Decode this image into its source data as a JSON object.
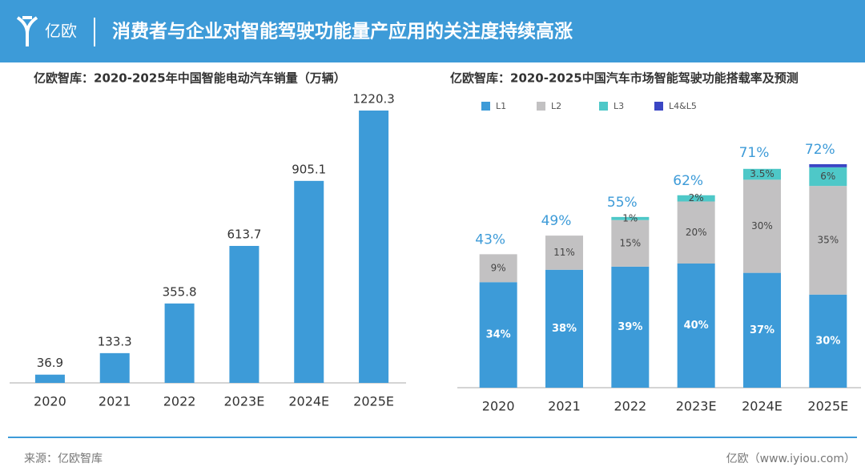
{
  "header": {
    "logo": "亿欧",
    "title": "消费者与企业对智能驾驶功能量产应用的关注度持续高涨"
  },
  "chart_data": [
    {
      "type": "bar",
      "title": "亿欧智库：2020-2025年中国智能电动汽车销量（万辆）",
      "categories": [
        "2020",
        "2021",
        "2022",
        "2023E",
        "2024E",
        "2025E"
      ],
      "values": [
        36.9,
        133.3,
        355.8,
        613.7,
        905.1,
        1220.3
      ],
      "color": "#3d9bd8"
    },
    {
      "type": "bar",
      "stacked": true,
      "title": "亿欧智库：2020-2025中国汽车市场智能驾驶功能搭载率及预测",
      "categories": [
        "2020",
        "2021",
        "2022",
        "2023E",
        "2024E",
        "2025E"
      ],
      "series": [
        {
          "name": "L1",
          "color": "#3d9bd8",
          "values": [
            34,
            38,
            39,
            40,
            37,
            30
          ],
          "value_labels": [
            "34%",
            "38%",
            "39%",
            "40%",
            "37%",
            "30%"
          ]
        },
        {
          "name": "L2",
          "color": "#c2c1c2",
          "values": [
            9,
            11,
            15,
            20,
            30,
            35
          ],
          "value_labels": [
            "9%",
            "11%",
            "15%",
            "20%",
            "30%",
            "35%"
          ]
        },
        {
          "name": "L3",
          "color": "#4ec8c8",
          "values": [
            0,
            0,
            1,
            2,
            3.5,
            6
          ],
          "value_labels": [
            null,
            null,
            "1%",
            "2%",
            "3.5%",
            "6%"
          ]
        },
        {
          "name": "L4&L5",
          "color": "#3a46c4",
          "values": [
            0,
            0,
            0,
            0,
            0,
            1
          ]
        }
      ],
      "totals": [
        43,
        49,
        55,
        62,
        71,
        72
      ],
      "total_labels": [
        "43%",
        "49%",
        "55%",
        "62%",
        "71%",
        "72%"
      ]
    }
  ],
  "footer": {
    "source": "来源：亿欧智库",
    "site": "亿欧（www.iyiou.com）"
  }
}
